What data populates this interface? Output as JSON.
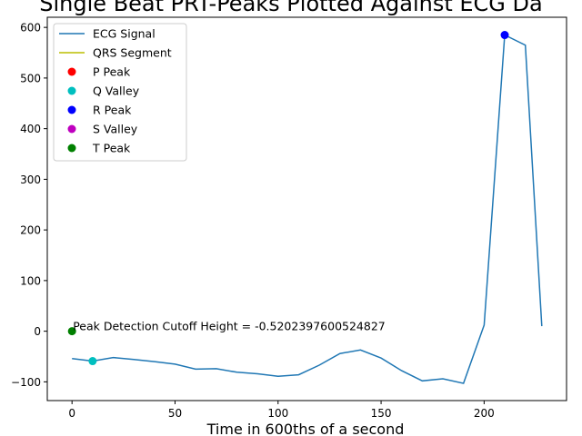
{
  "chart_data": {
    "type": "line",
    "title": "Single Beat PRT-Peaks Plotted Against ECG Da",
    "xlabel": "Time in 600ths of a second",
    "ylabel": "",
    "xlim": [
      -12,
      240
    ],
    "ylim": [
      -137,
      620
    ],
    "xticks": [
      0,
      50,
      100,
      150,
      200
    ],
    "yticks": [
      -100,
      0,
      100,
      200,
      300,
      400,
      500,
      600
    ],
    "grid": false,
    "legend_position": "upper-left",
    "annotation": {
      "text": "Peak Detection Cutoff Height = -0.5202397600524827",
      "x": 0,
      "y": 0
    },
    "series": [
      {
        "name": "ECG Signal",
        "kind": "line",
        "color": "#1f77b4",
        "x": [
          0,
          10,
          20,
          30,
          40,
          50,
          60,
          70,
          80,
          90,
          100,
          110,
          120,
          130,
          140,
          150,
          160,
          170,
          180,
          190,
          200,
          210,
          220,
          228
        ],
        "y": [
          -54,
          -59,
          -52,
          -56,
          -60,
          -65,
          -75,
          -74,
          -81,
          -84,
          -89,
          -86,
          -67,
          -44,
          -37,
          -53,
          -78,
          -98,
          -94,
          -103,
          12,
          585,
          565,
          10
        ]
      },
      {
        "name": "QRS Segment",
        "kind": "line",
        "color": "#bcbd00",
        "x": [],
        "y": []
      },
      {
        "name": "P Peak",
        "kind": "marker",
        "color": "#ff0000",
        "x": [],
        "y": []
      },
      {
        "name": "Q Valley",
        "kind": "marker",
        "color": "#00bfbf",
        "x": [
          10
        ],
        "y": [
          -59
        ]
      },
      {
        "name": "R Peak",
        "kind": "marker",
        "color": "#0000ff",
        "x": [
          210
        ],
        "y": [
          585
        ]
      },
      {
        "name": "S Valley",
        "kind": "marker",
        "color": "#bf00bf",
        "x": [],
        "y": []
      },
      {
        "name": "T Peak",
        "kind": "marker",
        "color": "#008000",
        "x": [
          0
        ],
        "y": [
          0
        ]
      }
    ]
  }
}
